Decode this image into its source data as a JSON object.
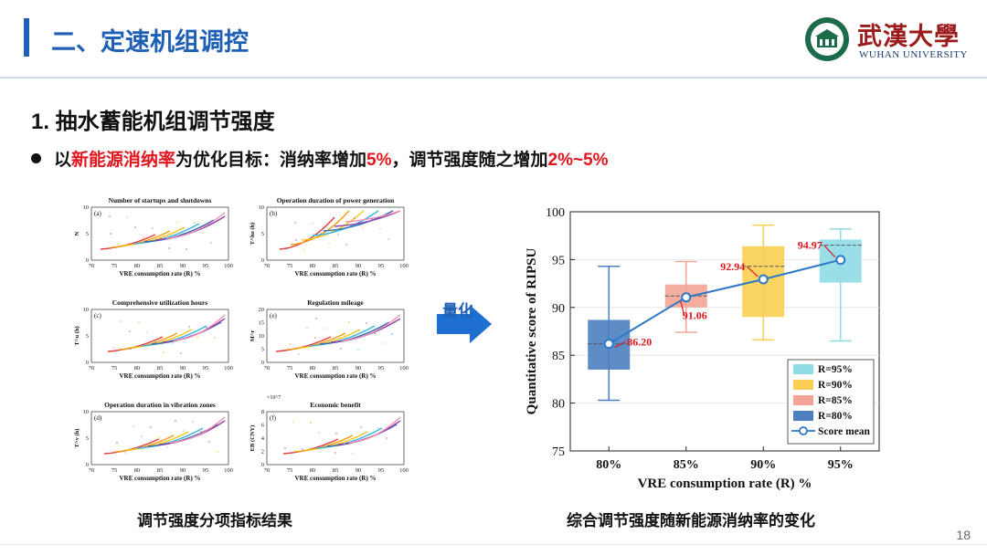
{
  "header": {
    "title": "二、定速机组调控"
  },
  "logo": {
    "cn": "武漢大學",
    "en": "WUHAN UNIVERSITY"
  },
  "section": {
    "heading": "1. 抽水蓄能机组调节强度"
  },
  "bullet": {
    "p1": "以",
    "p2": "新能源消纳率",
    "p3": "为优化目标：消纳率增加",
    "p4": "5%",
    "p5": "，调节强度随之增加",
    "p6": "2%~5%"
  },
  "arrow": {
    "label": "量化"
  },
  "captions": {
    "left": "调节强度分项指标结果",
    "right": "综合调节强度随新能源消纳率的变化"
  },
  "page": {
    "number": "18"
  },
  "small_panels": [
    {
      "id": "a",
      "title": "Number of startups and shutdowns",
      "ylabel": "N",
      "yticks": [
        "0",
        "5",
        "10"
      ],
      "xlabel": "VRE consumption rate (R) %"
    },
    {
      "id": "b",
      "title": "Operation duration of power generation",
      "ylabel": "T^ho (h)",
      "yticks": [
        "0",
        "5",
        "10"
      ],
      "xlabel": "VRE consumption rate (R) %"
    },
    {
      "id": "c",
      "title": "Comprehensive utilization hours",
      "ylabel": "T^u (h)",
      "yticks": [
        "0",
        "5",
        "10"
      ],
      "xlabel": "VRE consumption rate (R) %"
    },
    {
      "id": "e",
      "title": "Regulation mileage",
      "ylabel": "M^r",
      "yticks": [
        "0",
        "5",
        "10",
        "15",
        "20"
      ],
      "xlabel": "VRE consumption rate (R) %"
    },
    {
      "id": "d",
      "title": "Operation duration in vibration zones",
      "ylabel": "T^v (h)",
      "yticks": [
        "0",
        "5",
        "10"
      ],
      "xlabel": "VRE consumption rate (R) %"
    },
    {
      "id": "f",
      "title": "Economic benefit",
      "ylabel": "EB (CNY)",
      "yticks": [
        "0",
        "2",
        "4",
        "6",
        "8"
      ],
      "xlabel": "VRE consumption rate (R) %",
      "exponent": "×10^7"
    }
  ],
  "small_xticks": [
    "70",
    "75",
    "80",
    "85",
    "90",
    "95",
    "100"
  ],
  "chart_data": {
    "type": "box",
    "title": "",
    "xlabel": "VRE consumption rate (R) %",
    "ylabel": "Quantitative score of RIPSU",
    "ylim": [
      75,
      100
    ],
    "yticks": [
      75,
      80,
      85,
      90,
      95,
      100
    ],
    "categories": [
      "80%",
      "85%",
      "90%",
      "95%"
    ],
    "boxes": [
      {
        "name": "R=80%",
        "color": "#4d7fc0",
        "min": 80.3,
        "q1": 83.5,
        "median": 86.2,
        "q3": 88.7,
        "max": 94.3
      },
      {
        "name": "R=85%",
        "color": "#f2a596",
        "min": 87.4,
        "q1": 90.0,
        "median": 91.2,
        "q3": 92.4,
        "max": 94.8
      },
      {
        "name": "R=90%",
        "color": "#f8cf52",
        "min": 86.6,
        "q1": 89.0,
        "median": 94.3,
        "q3": 96.4,
        "max": 98.6
      },
      {
        "name": "R=95%",
        "color": "#8fdce4",
        "min": 86.5,
        "q1": 92.6,
        "median": 96.5,
        "q3": 97.1,
        "max": 98.2
      }
    ],
    "series": [
      {
        "name": "Score mean",
        "values": [
          86.2,
          91.06,
          92.94,
          94.97
        ]
      }
    ],
    "labels": [
      "86.20",
      "91.06",
      "92.94",
      "94.97"
    ],
    "legend": [
      "R=95%",
      "R=90%",
      "R=85%",
      "R=80%",
      "Score mean"
    ],
    "legend_position": "bottom-right"
  }
}
